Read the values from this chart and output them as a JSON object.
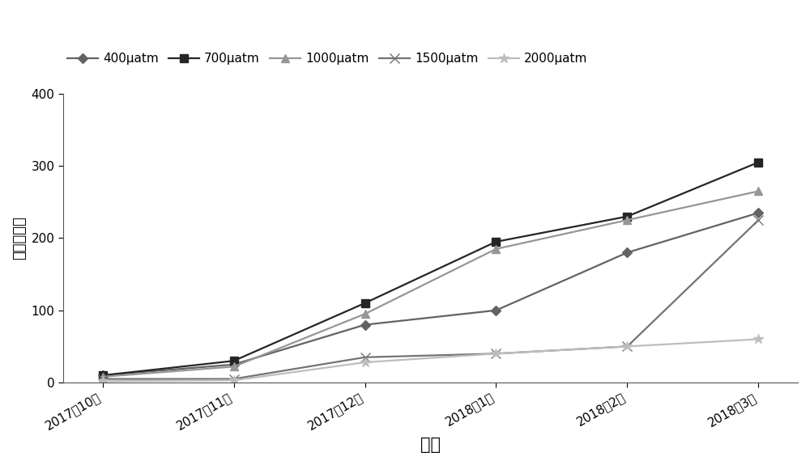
{
  "x_labels": [
    "2017年10月",
    "2017年11月",
    "2017年12月",
    "2018年1月",
    "2018年2月",
    "2018年3月"
  ],
  "series": [
    {
      "label": "400μatm",
      "values": [
        10,
        25,
        80,
        100,
        180,
        235
      ],
      "color": "#636363",
      "marker": "D",
      "markersize": 6,
      "linewidth": 1.6
    },
    {
      "label": "700μatm",
      "values": [
        10,
        30,
        110,
        195,
        230,
        305
      ],
      "color": "#252525",
      "marker": "s",
      "markersize": 7,
      "linewidth": 1.6
    },
    {
      "label": "1000μatm",
      "values": [
        8,
        22,
        95,
        185,
        225,
        265
      ],
      "color": "#969696",
      "marker": "^",
      "markersize": 7,
      "linewidth": 1.6
    },
    {
      "label": "1500μatm",
      "values": [
        5,
        5,
        35,
        40,
        50,
        225
      ],
      "color": "#737373",
      "marker": "x",
      "markersize": 8,
      "linewidth": 1.6
    },
    {
      "label": "2000μatm",
      "values": [
        2,
        3,
        28,
        40,
        50,
        60
      ],
      "color": "#bdbdbd",
      "marker": "*",
      "markersize": 9,
      "linewidth": 1.6
    }
  ],
  "ylabel": "鲜重（克）",
  "xlabel": "时间",
  "ylim": [
    0,
    400
  ],
  "yticks": [
    0,
    100,
    200,
    300,
    400
  ],
  "background_color": "#ffffff",
  "axis_fontsize": 13,
  "tick_fontsize": 11,
  "legend_fontsize": 11
}
